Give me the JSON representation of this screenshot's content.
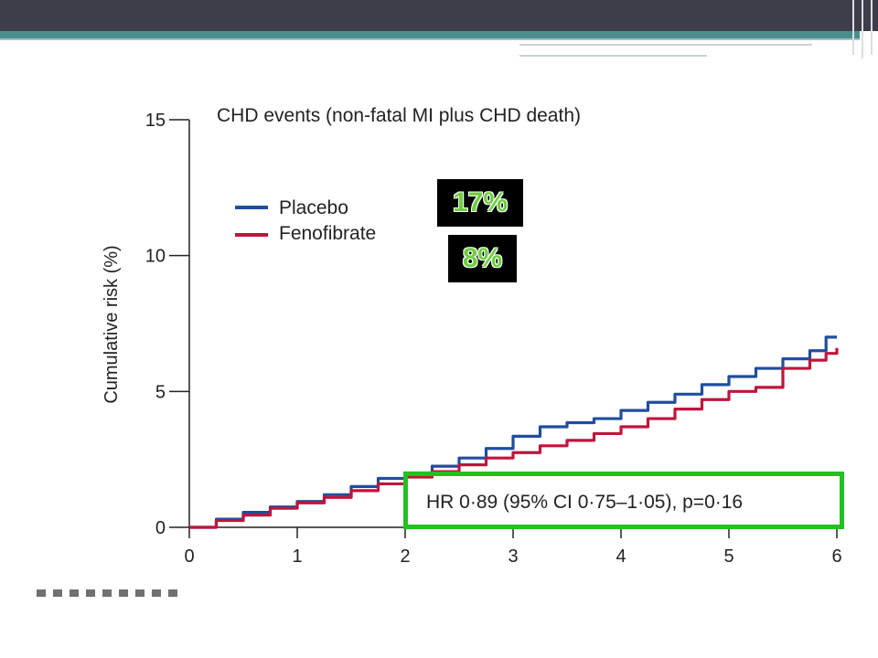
{
  "colors": {
    "placebo": "#1f4e9c",
    "fenofibrate": "#c0143c",
    "highlight_box": "#22c022",
    "badge_bg": "#000000",
    "badge_text": "#6ccf3e"
  },
  "badges": {
    "placebo_pct": "17%",
    "fenofibrate_pct": "8%"
  },
  "chart_data": {
    "type": "line",
    "title": "CHD events (non-fatal MI plus CHD death)",
    "xlabel": "",
    "ylabel": "Cumulative risk (%)",
    "xlim": [
      0,
      6
    ],
    "ylim": [
      0,
      15
    ],
    "xticks": [
      "0",
      "1",
      "2",
      "3",
      "4",
      "5",
      "6"
    ],
    "yticks": [
      "0",
      "5",
      "10",
      "15"
    ],
    "legend": {
      "position": "top-left",
      "entries": [
        "Placebo",
        "Fenofibrate"
      ]
    },
    "annotation": "HR 0·89 (95% CI 0·75–1·05), p=0·16",
    "series": [
      {
        "name": "Placebo",
        "color": "#1f4e9c",
        "x": [
          0,
          0.25,
          0.5,
          0.75,
          1.0,
          1.25,
          1.5,
          1.75,
          2.0,
          2.25,
          2.5,
          2.75,
          3.0,
          3.25,
          3.5,
          3.75,
          4.0,
          4.25,
          4.5,
          4.75,
          5.0,
          5.25,
          5.5,
          5.75,
          5.9,
          6.0
        ],
        "y": [
          0,
          0.3,
          0.55,
          0.75,
          0.95,
          1.2,
          1.5,
          1.8,
          2.0,
          2.25,
          2.55,
          2.9,
          3.35,
          3.7,
          3.85,
          4.0,
          4.3,
          4.6,
          4.9,
          5.25,
          5.55,
          5.85,
          6.2,
          6.5,
          7.0,
          7.0
        ]
      },
      {
        "name": "Fenofibrate",
        "color": "#c0143c",
        "x": [
          0,
          0.25,
          0.5,
          0.75,
          1.0,
          1.25,
          1.5,
          1.75,
          2.0,
          2.25,
          2.5,
          2.75,
          3.0,
          3.25,
          3.5,
          3.75,
          4.0,
          4.25,
          4.5,
          4.75,
          5.0,
          5.25,
          5.5,
          5.75,
          5.9,
          6.0
        ],
        "y": [
          0,
          0.25,
          0.45,
          0.7,
          0.9,
          1.1,
          1.35,
          1.6,
          1.85,
          2.05,
          2.3,
          2.55,
          2.75,
          3.0,
          3.2,
          3.45,
          3.7,
          4.0,
          4.35,
          4.7,
          5.0,
          5.15,
          5.85,
          6.15,
          6.4,
          6.6
        ]
      }
    ]
  }
}
